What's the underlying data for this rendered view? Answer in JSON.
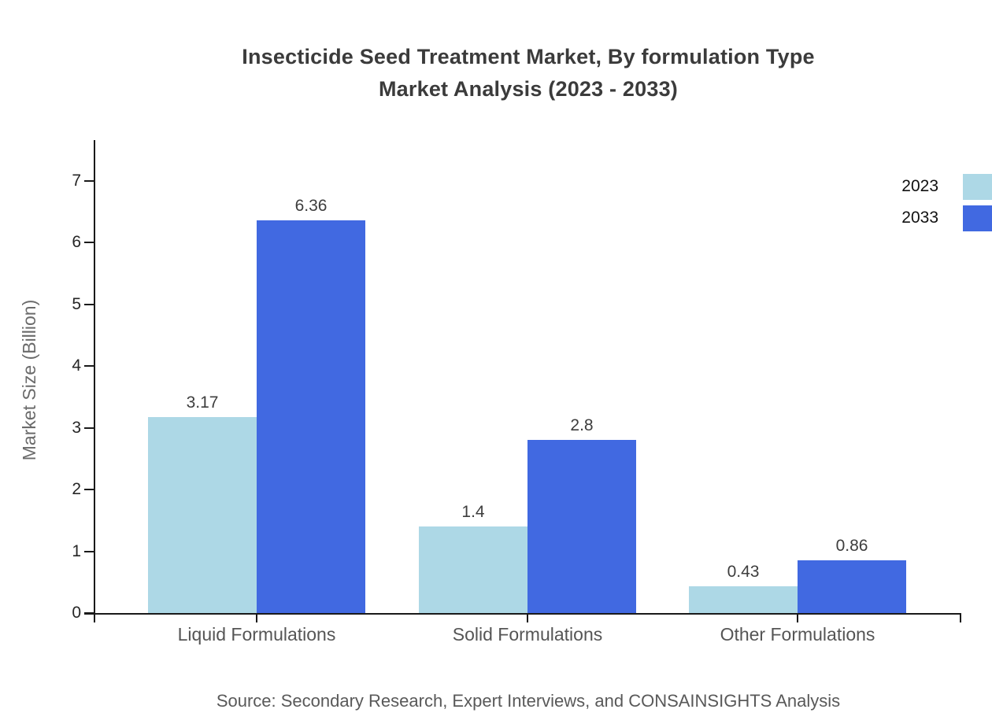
{
  "title": {
    "line1": "Insecticide Seed Treatment Market, By formulation Type",
    "line2": "Market Analysis (2023 - 2033)"
  },
  "source": "Source: Secondary Research, Expert Interviews, and CONSAINSIGHTS Analysis",
  "colors": {
    "series_2023": "#ADD8E6",
    "series_2033": "#4169E1",
    "title_text": "#3B3B3B",
    "axis_line": "#1A1A1A",
    "tick_label": "#262626",
    "y_axis_label": "#6B6B6B",
    "category_label": "#555555",
    "value_label": "#3D3D3D",
    "source_text": "#595959",
    "legend_text": "#111111",
    "background": "#FFFFFF"
  },
  "chart_data": {
    "type": "bar",
    "title": "Insecticide Seed Treatment Market, By formulation Type Market Analysis (2023 - 2033)",
    "categories": [
      "Liquid Formulations",
      "Solid Formulations",
      "Other Formulations"
    ],
    "series": [
      {
        "name": "2023",
        "color": "#ADD8E6",
        "values": [
          3.17,
          1.4,
          0.43
        ]
      },
      {
        "name": "2033",
        "color": "#4169E1",
        "values": [
          6.36,
          2.8,
          0.86
        ]
      }
    ],
    "xlabel": "",
    "ylabel": "Market Size (Billion)",
    "ylim": [
      0,
      7
    ],
    "yticks": [
      0,
      1,
      2,
      3,
      4,
      5,
      6,
      7
    ],
    "grid": false,
    "legend_position": "top-right",
    "value_labels_shown": true
  }
}
